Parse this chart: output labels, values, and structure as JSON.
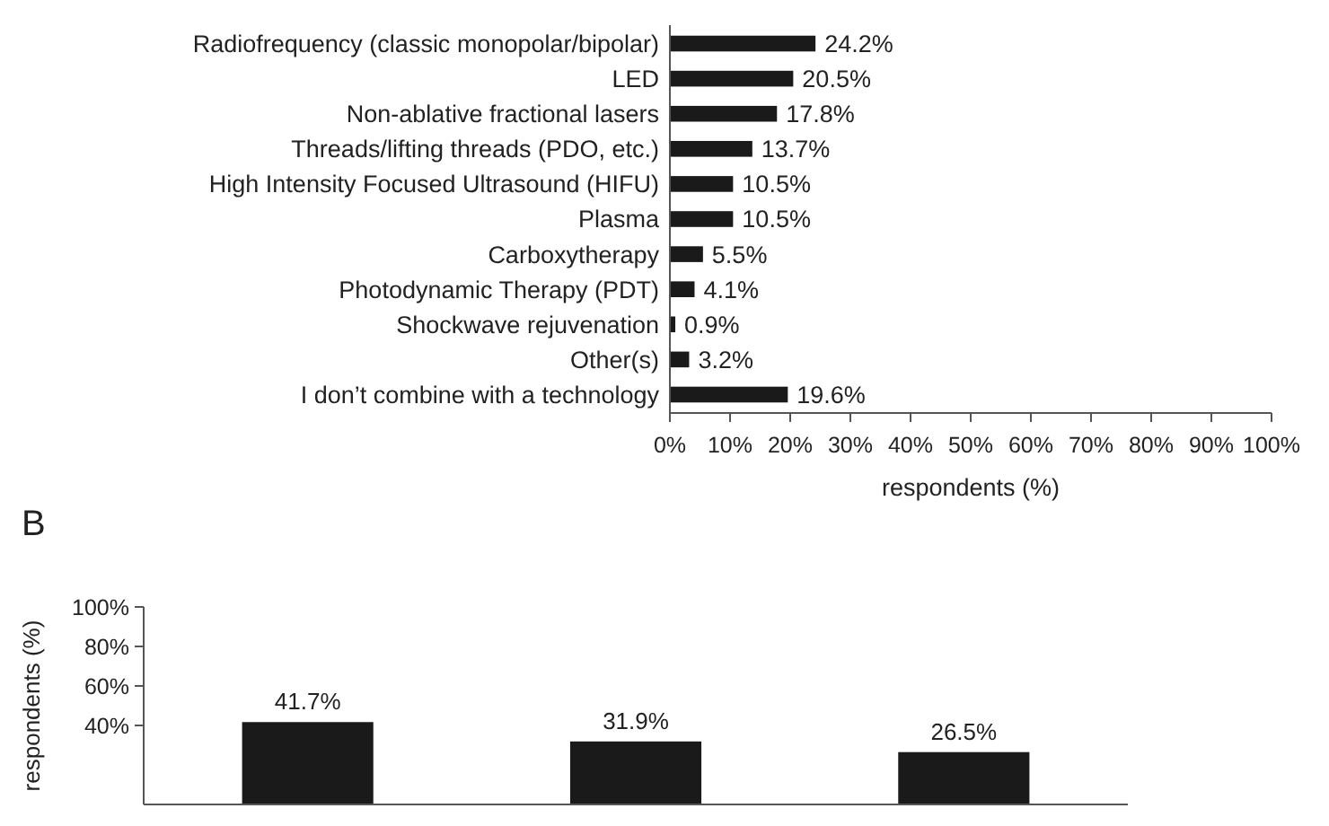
{
  "chart_data": [
    {
      "type": "bar",
      "orientation": "horizontal",
      "categories": [
        "Radiofrequency (classic monopolar/bipolar)",
        "LED",
        "Non-ablative fractional lasers",
        "Threads/lifting threads (PDO, etc.)",
        "High Intensity Focused Ultrasound (HIFU)",
        "Plasma",
        "Carboxytherapy",
        "Photodynamic Therapy (PDT)",
        "Shockwave rejuvenation",
        "Other(s)",
        "I don’t combine with a technology"
      ],
      "values": [
        24.2,
        20.5,
        17.8,
        13.7,
        10.5,
        10.5,
        5.5,
        4.1,
        0.9,
        3.2,
        19.6
      ],
      "color": "#1a1a1a",
      "data_labels": true,
      "value_labels": [
        "24.2%",
        "20.5%",
        "17.8%",
        "13.7%",
        "10.5%",
        "10.5%",
        "5.5%",
        "4.1%",
        "0.9%",
        "3.2%",
        "19.6%"
      ],
      "xlim": [
        0,
        100
      ],
      "xticks": [
        {
          "value": 0,
          "label": "0%"
        },
        {
          "value": 10,
          "label": "10%"
        },
        {
          "value": 20,
          "label": "20%"
        },
        {
          "value": 30,
          "label": "30%"
        },
        {
          "value": 40,
          "label": "40%"
        },
        {
          "value": 50,
          "label": "50%"
        },
        {
          "value": 60,
          "label": "60%"
        },
        {
          "value": 70,
          "label": "70%"
        },
        {
          "value": 80,
          "label": "80%"
        },
        {
          "value": 90,
          "label": "90%"
        },
        {
          "value": 100,
          "label": "100%"
        }
      ],
      "xlabel": "respondents (%)"
    },
    {
      "type": "bar",
      "categories": [
        null,
        null,
        null
      ],
      "values": [
        41.7,
        31.9,
        26.5
      ],
      "color": "#1a1a1a",
      "data_labels": true,
      "value_labels": [
        "41.7%",
        "31.9%",
        "26.5%"
      ],
      "ylim": [
        0,
        100
      ],
      "yticks": [
        {
          "value": 40,
          "label": "40%"
        },
        {
          "value": 60,
          "label": "60%"
        },
        {
          "value": 80,
          "label": "80%"
        },
        {
          "value": 100,
          "label": "100%"
        }
      ],
      "ylabel": "respondents (%)",
      "annotations": [
        "B"
      ]
    }
  ]
}
